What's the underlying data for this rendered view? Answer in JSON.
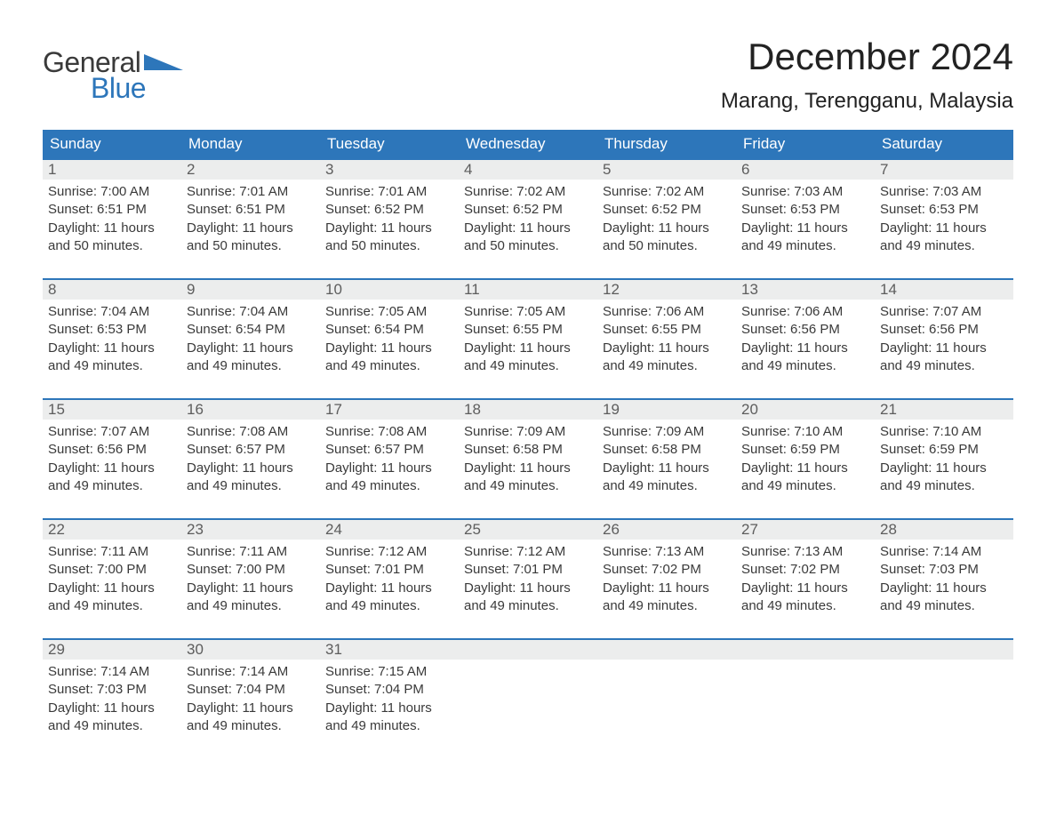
{
  "brand": {
    "word1": "General",
    "word2": "Blue",
    "accent_color": "#2d76ba"
  },
  "title": "December 2024",
  "location": "Marang, Terengganu, Malaysia",
  "colors": {
    "header_bg": "#2d76ba",
    "header_fg": "#ffffff",
    "daynum_bg": "#eceded",
    "daynum_fg": "#5d5d5d",
    "body_fg": "#3a3a3a",
    "week_top_border": "#2d76ba",
    "page_bg": "#ffffff"
  },
  "typography": {
    "title_fontsize": 42,
    "location_fontsize": 24,
    "dow_fontsize": 17,
    "daynum_fontsize": 17,
    "body_fontsize": 15,
    "logo_fontsize": 32
  },
  "days_of_week": [
    "Sunday",
    "Monday",
    "Tuesday",
    "Wednesday",
    "Thursday",
    "Friday",
    "Saturday"
  ],
  "weeks": [
    [
      {
        "num": "1",
        "sunrise": "Sunrise: 7:00 AM",
        "sunset": "Sunset: 6:51 PM",
        "dl1": "Daylight: 11 hours",
        "dl2": "and 50 minutes."
      },
      {
        "num": "2",
        "sunrise": "Sunrise: 7:01 AM",
        "sunset": "Sunset: 6:51 PM",
        "dl1": "Daylight: 11 hours",
        "dl2": "and 50 minutes."
      },
      {
        "num": "3",
        "sunrise": "Sunrise: 7:01 AM",
        "sunset": "Sunset: 6:52 PM",
        "dl1": "Daylight: 11 hours",
        "dl2": "and 50 minutes."
      },
      {
        "num": "4",
        "sunrise": "Sunrise: 7:02 AM",
        "sunset": "Sunset: 6:52 PM",
        "dl1": "Daylight: 11 hours",
        "dl2": "and 50 minutes."
      },
      {
        "num": "5",
        "sunrise": "Sunrise: 7:02 AM",
        "sunset": "Sunset: 6:52 PM",
        "dl1": "Daylight: 11 hours",
        "dl2": "and 50 minutes."
      },
      {
        "num": "6",
        "sunrise": "Sunrise: 7:03 AM",
        "sunset": "Sunset: 6:53 PM",
        "dl1": "Daylight: 11 hours",
        "dl2": "and 49 minutes."
      },
      {
        "num": "7",
        "sunrise": "Sunrise: 7:03 AM",
        "sunset": "Sunset: 6:53 PM",
        "dl1": "Daylight: 11 hours",
        "dl2": "and 49 minutes."
      }
    ],
    [
      {
        "num": "8",
        "sunrise": "Sunrise: 7:04 AM",
        "sunset": "Sunset: 6:53 PM",
        "dl1": "Daylight: 11 hours",
        "dl2": "and 49 minutes."
      },
      {
        "num": "9",
        "sunrise": "Sunrise: 7:04 AM",
        "sunset": "Sunset: 6:54 PM",
        "dl1": "Daylight: 11 hours",
        "dl2": "and 49 minutes."
      },
      {
        "num": "10",
        "sunrise": "Sunrise: 7:05 AM",
        "sunset": "Sunset: 6:54 PM",
        "dl1": "Daylight: 11 hours",
        "dl2": "and 49 minutes."
      },
      {
        "num": "11",
        "sunrise": "Sunrise: 7:05 AM",
        "sunset": "Sunset: 6:55 PM",
        "dl1": "Daylight: 11 hours",
        "dl2": "and 49 minutes."
      },
      {
        "num": "12",
        "sunrise": "Sunrise: 7:06 AM",
        "sunset": "Sunset: 6:55 PM",
        "dl1": "Daylight: 11 hours",
        "dl2": "and 49 minutes."
      },
      {
        "num": "13",
        "sunrise": "Sunrise: 7:06 AM",
        "sunset": "Sunset: 6:56 PM",
        "dl1": "Daylight: 11 hours",
        "dl2": "and 49 minutes."
      },
      {
        "num": "14",
        "sunrise": "Sunrise: 7:07 AM",
        "sunset": "Sunset: 6:56 PM",
        "dl1": "Daylight: 11 hours",
        "dl2": "and 49 minutes."
      }
    ],
    [
      {
        "num": "15",
        "sunrise": "Sunrise: 7:07 AM",
        "sunset": "Sunset: 6:56 PM",
        "dl1": "Daylight: 11 hours",
        "dl2": "and 49 minutes."
      },
      {
        "num": "16",
        "sunrise": "Sunrise: 7:08 AM",
        "sunset": "Sunset: 6:57 PM",
        "dl1": "Daylight: 11 hours",
        "dl2": "and 49 minutes."
      },
      {
        "num": "17",
        "sunrise": "Sunrise: 7:08 AM",
        "sunset": "Sunset: 6:57 PM",
        "dl1": "Daylight: 11 hours",
        "dl2": "and 49 minutes."
      },
      {
        "num": "18",
        "sunrise": "Sunrise: 7:09 AM",
        "sunset": "Sunset: 6:58 PM",
        "dl1": "Daylight: 11 hours",
        "dl2": "and 49 minutes."
      },
      {
        "num": "19",
        "sunrise": "Sunrise: 7:09 AM",
        "sunset": "Sunset: 6:58 PM",
        "dl1": "Daylight: 11 hours",
        "dl2": "and 49 minutes."
      },
      {
        "num": "20",
        "sunrise": "Sunrise: 7:10 AM",
        "sunset": "Sunset: 6:59 PM",
        "dl1": "Daylight: 11 hours",
        "dl2": "and 49 minutes."
      },
      {
        "num": "21",
        "sunrise": "Sunrise: 7:10 AM",
        "sunset": "Sunset: 6:59 PM",
        "dl1": "Daylight: 11 hours",
        "dl2": "and 49 minutes."
      }
    ],
    [
      {
        "num": "22",
        "sunrise": "Sunrise: 7:11 AM",
        "sunset": "Sunset: 7:00 PM",
        "dl1": "Daylight: 11 hours",
        "dl2": "and 49 minutes."
      },
      {
        "num": "23",
        "sunrise": "Sunrise: 7:11 AM",
        "sunset": "Sunset: 7:00 PM",
        "dl1": "Daylight: 11 hours",
        "dl2": "and 49 minutes."
      },
      {
        "num": "24",
        "sunrise": "Sunrise: 7:12 AM",
        "sunset": "Sunset: 7:01 PM",
        "dl1": "Daylight: 11 hours",
        "dl2": "and 49 minutes."
      },
      {
        "num": "25",
        "sunrise": "Sunrise: 7:12 AM",
        "sunset": "Sunset: 7:01 PM",
        "dl1": "Daylight: 11 hours",
        "dl2": "and 49 minutes."
      },
      {
        "num": "26",
        "sunrise": "Sunrise: 7:13 AM",
        "sunset": "Sunset: 7:02 PM",
        "dl1": "Daylight: 11 hours",
        "dl2": "and 49 minutes."
      },
      {
        "num": "27",
        "sunrise": "Sunrise: 7:13 AM",
        "sunset": "Sunset: 7:02 PM",
        "dl1": "Daylight: 11 hours",
        "dl2": "and 49 minutes."
      },
      {
        "num": "28",
        "sunrise": "Sunrise: 7:14 AM",
        "sunset": "Sunset: 7:03 PM",
        "dl1": "Daylight: 11 hours",
        "dl2": "and 49 minutes."
      }
    ],
    [
      {
        "num": "29",
        "sunrise": "Sunrise: 7:14 AM",
        "sunset": "Sunset: 7:03 PM",
        "dl1": "Daylight: 11 hours",
        "dl2": "and 49 minutes."
      },
      {
        "num": "30",
        "sunrise": "Sunrise: 7:14 AM",
        "sunset": "Sunset: 7:04 PM",
        "dl1": "Daylight: 11 hours",
        "dl2": "and 49 minutes."
      },
      {
        "num": "31",
        "sunrise": "Sunrise: 7:15 AM",
        "sunset": "Sunset: 7:04 PM",
        "dl1": "Daylight: 11 hours",
        "dl2": "and 49 minutes."
      },
      {
        "empty": true
      },
      {
        "empty": true
      },
      {
        "empty": true
      },
      {
        "empty": true
      }
    ]
  ]
}
